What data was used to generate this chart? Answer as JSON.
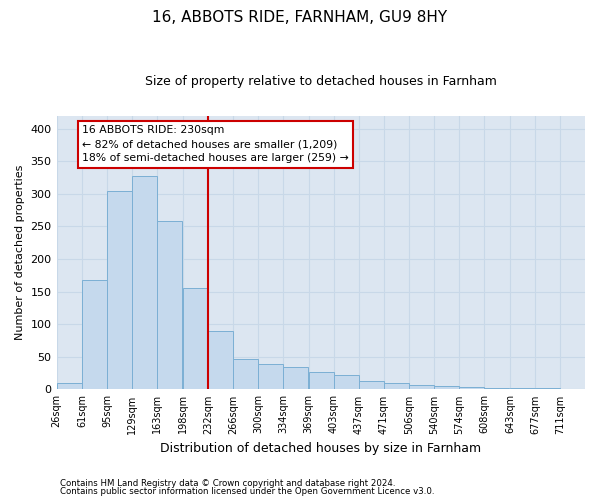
{
  "title": "16, ABBOTS RIDE, FARNHAM, GU9 8HY",
  "subtitle": "Size of property relative to detached houses in Farnham",
  "xlabel": "Distribution of detached houses by size in Farnham",
  "ylabel": "Number of detached properties",
  "footnote1": "Contains HM Land Registry data © Crown copyright and database right 2024.",
  "footnote2": "Contains public sector information licensed under the Open Government Licence v3.0.",
  "bin_labels": [
    "26sqm",
    "61sqm",
    "95sqm",
    "129sqm",
    "163sqm",
    "198sqm",
    "232sqm",
    "266sqm",
    "300sqm",
    "334sqm",
    "369sqm",
    "403sqm",
    "437sqm",
    "471sqm",
    "506sqm",
    "540sqm",
    "574sqm",
    "608sqm",
    "643sqm",
    "677sqm",
    "711sqm"
  ],
  "bin_starts": [
    26,
    61,
    95,
    129,
    163,
    198,
    232,
    266,
    300,
    334,
    369,
    403,
    437,
    471,
    506,
    540,
    574,
    608,
    643,
    677
  ],
  "bin_width": 34,
  "bar_values": [
    10,
    168,
    305,
    328,
    258,
    155,
    90,
    46,
    39,
    35,
    26,
    22,
    13,
    10,
    7,
    5,
    3,
    2,
    2,
    2
  ],
  "bar_color": "#c5d9ed",
  "bar_edge_color": "#7bafd4",
  "grid_color": "#c8d8e8",
  "vline_x": 232,
  "annotation_text1": "16 ABBOTS RIDE: 230sqm",
  "annotation_text2": "← 82% of detached houses are smaller (1,209)",
  "annotation_text3": "18% of semi-detached houses are larger (259) →",
  "annotation_box_color": "#ffffff",
  "annotation_box_edge": "#cc0000",
  "vline_color": "#cc0000",
  "ylim": [
    0,
    420
  ],
  "yticks": [
    0,
    50,
    100,
    150,
    200,
    250,
    300,
    350,
    400
  ],
  "bg_color": "#dce6f1",
  "xlim_left": 26,
  "xlim_right": 745
}
